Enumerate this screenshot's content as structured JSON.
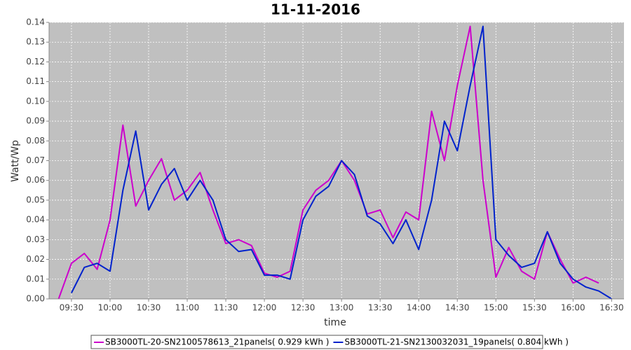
{
  "chart_data": {
    "type": "line",
    "title": "11-11-2016",
    "x_label": "time",
    "y_label": "Watt/Wp",
    "x": [
      9.3333,
      9.5,
      9.6667,
      9.8333,
      10.0,
      10.1667,
      10.3333,
      10.5,
      10.6667,
      10.8333,
      11.0,
      11.1667,
      11.3333,
      11.5,
      11.6667,
      11.8333,
      12.0,
      12.1667,
      12.3333,
      12.5,
      12.6667,
      12.8333,
      13.0,
      13.1667,
      13.3333,
      13.5,
      13.6667,
      13.8333,
      14.0,
      14.1667,
      14.3333,
      14.5,
      14.6667,
      14.8333,
      15.0,
      15.1667,
      15.3333,
      15.5,
      15.6667,
      15.8333,
      16.0,
      16.1667,
      16.3333,
      16.5
    ],
    "series": [
      {
        "name": "SB3000TL-20-SN2100578613_21panels( 0.929 kWh )",
        "color": "#cc00cc",
        "values": [
          0.0,
          0.018,
          0.023,
          0.015,
          0.04,
          0.088,
          0.047,
          0.06,
          0.071,
          0.05,
          0.055,
          0.064,
          0.045,
          0.028,
          0.03,
          0.027,
          0.013,
          0.011,
          0.014,
          0.045,
          0.055,
          0.06,
          0.07,
          0.06,
          0.043,
          0.045,
          0.031,
          0.044,
          0.04,
          0.095,
          0.07,
          0.108,
          0.138,
          0.06,
          0.011,
          0.026,
          0.014,
          0.01,
          0.034,
          0.02,
          0.008,
          0.011,
          0.008,
          null
        ]
      },
      {
        "name": "SB3000TL-21-SN2130032031_19panels( 0.804 kWh )",
        "color": "#0022cc",
        "values": [
          null,
          0.003,
          0.016,
          0.018,
          0.014,
          0.055,
          0.085,
          0.045,
          0.058,
          0.066,
          0.05,
          0.06,
          0.05,
          0.03,
          0.024,
          0.025,
          0.012,
          0.012,
          0.01,
          0.04,
          0.052,
          0.057,
          0.07,
          0.063,
          0.042,
          0.038,
          0.028,
          0.04,
          0.025,
          0.05,
          0.09,
          0.075,
          0.108,
          0.138,
          0.03,
          0.022,
          0.016,
          0.018,
          0.034,
          0.018,
          0.01,
          0.006,
          0.004,
          0.0
        ]
      }
    ],
    "xlim": [
      9.21,
      16.66
    ],
    "xticks": [
      {
        "value": 9.5,
        "label": "09:30"
      },
      {
        "value": 10.0,
        "label": "10:00"
      },
      {
        "value": 10.5,
        "label": "10:30"
      },
      {
        "value": 11.0,
        "label": "11:00"
      },
      {
        "value": 11.5,
        "label": "11:30"
      },
      {
        "value": 12.0,
        "label": "12:00"
      },
      {
        "value": 12.5,
        "label": "12:30"
      },
      {
        "value": 13.0,
        "label": "13:00"
      },
      {
        "value": 13.5,
        "label": "13:30"
      },
      {
        "value": 14.0,
        "label": "14:00"
      },
      {
        "value": 14.5,
        "label": "14:30"
      },
      {
        "value": 15.0,
        "label": "15:00"
      },
      {
        "value": 15.5,
        "label": "15:30"
      },
      {
        "value": 16.0,
        "label": "16:00"
      },
      {
        "value": 16.5,
        "label": "16:30"
      }
    ],
    "ylim": [
      0,
      0.14
    ],
    "yticks": [
      {
        "value": 0,
        "label": "0.00"
      },
      0.01,
      0.02,
      0.03,
      0.04,
      0.05,
      0.06,
      0.07,
      0.08,
      0.09,
      {
        "value": 0.1,
        "label": "0.10"
      },
      0.11,
      0.12,
      0.13,
      0.14
    ],
    "grid": true,
    "legend": "bottom"
  }
}
